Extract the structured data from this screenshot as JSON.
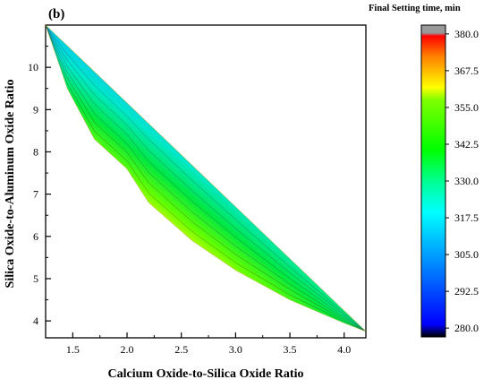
{
  "chart_data": {
    "type": "heatmap",
    "panel_label": "(b)",
    "xlabel": "Calcium Oxide-to-Silica Oxide Ratio",
    "ylabel": "Silica Oxide-to-Aluminum Oxide Ratio",
    "colorbar_title": "Final Setting time, min",
    "xlim": [
      1.25,
      4.2
    ],
    "ylim": [
      3.6,
      11.0
    ],
    "x_ticks": [
      "1.5",
      "2.0",
      "2.5",
      "3.0",
      "3.5",
      "4.0"
    ],
    "y_ticks": [
      "4",
      "5",
      "6",
      "7",
      "8",
      "9",
      "10"
    ],
    "colorbar_ticks": [
      "280.0",
      "292.5",
      "305.0",
      "317.5",
      "330.0",
      "342.5",
      "355.0",
      "367.5",
      "380.0"
    ],
    "colorbar_range": [
      277,
      383
    ],
    "region_upper_edge": [
      [
        1.25,
        11.0
      ],
      [
        4.2,
        3.75
      ]
    ],
    "region_lower_edge": [
      [
        1.25,
        11.0
      ],
      [
        1.45,
        9.5
      ],
      [
        1.7,
        8.3
      ],
      [
        2.0,
        7.6
      ],
      [
        2.2,
        6.8
      ],
      [
        2.6,
        5.9
      ],
      [
        3.0,
        5.2
      ],
      [
        3.5,
        4.5
      ],
      [
        4.0,
        3.95
      ],
      [
        4.2,
        3.75
      ]
    ],
    "grid": false,
    "colors": {
      "scale": [
        "#000000",
        "#0000ff",
        "#00ffff",
        "#00ff00",
        "#ffff00",
        "#ff0000",
        "#999999"
      ]
    }
  }
}
